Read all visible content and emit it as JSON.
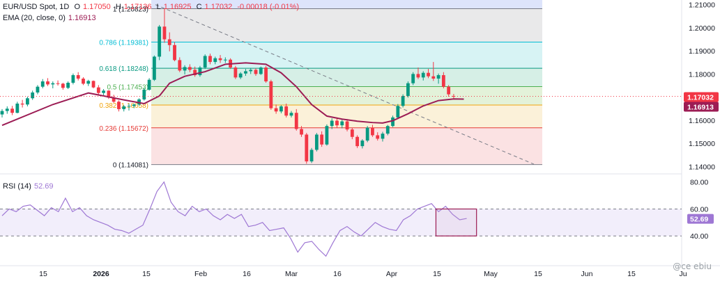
{
  "header": {
    "symbol": "EUR/USD Spot, 1D",
    "open_label": "O",
    "open": "1.17050",
    "high_label": "H",
    "high": "1.17136",
    "low_label": "L",
    "low": "1.16925",
    "close_label": "C",
    "close": "1.17032",
    "change": "-0.00018 (-0.01%)",
    "ema_label": "EMA (20, close, 0)",
    "ema_value": "1.16913"
  },
  "rsi_header": {
    "label": "RSI (14)",
    "value": "52.69"
  },
  "watermark": "@ce ebiu",
  "colors": {
    "bull": "#089981",
    "bear": "#f23645",
    "ema": "#9c1c54",
    "rsi": "#9e77d4",
    "close_badge": "#f23645",
    "ema_badge": "#9c1c54",
    "rsi_badge": "#9e77d4"
  },
  "chart_data": [
    {
      "type": "candlestick",
      "title": "EUR/USD Spot, 1D",
      "ylim": [
        1.138,
        1.212
      ],
      "y_ticks": [
        "1.21000",
        "1.20000",
        "1.19000",
        "1.18000",
        "1.17000",
        "1.16000",
        "1.15000",
        "1.14000"
      ],
      "x_ticks": [
        "15",
        "2026",
        "15",
        "Feb",
        "16",
        "Mar",
        "16",
        "Apr",
        "15",
        "May",
        "15",
        "Jun",
        "15",
        "Ju"
      ],
      "price_badges": [
        {
          "label": "1.17032",
          "value": 1.17032,
          "color": "#f23645"
        },
        {
          "label": "1.16913",
          "value": 1.16913,
          "color": "#9c1c54"
        }
      ],
      "fibonacci": [
        {
          "label": "1 (1.20823)",
          "value": 1.20823,
          "line": "#787b86",
          "fill": "#e9e9ea"
        },
        {
          "label": "0.786 (1.19381)",
          "value": 1.19381,
          "line": "#00bcd4",
          "fill": "#d7f3f4"
        },
        {
          "label": "0.618 (1.18248)",
          "value": 1.18248,
          "line": "#089981",
          "fill": "#d6efe6"
        },
        {
          "label": "0.5 (1.17453)",
          "value": 1.17453,
          "line": "#4caf50",
          "fill": "#e3f2d9"
        },
        {
          "label": "0.382 (1.16658)",
          "value": 1.16658,
          "line": "#f0a30a",
          "fill": "#fbf1d9"
        },
        {
          "label": "0.236 (1.15672)",
          "value": 1.15672,
          "line": "#e53935",
          "fill": "#fbe2e3"
        },
        {
          "label": "0 (1.14081)",
          "value": 1.14081,
          "line": "#787b86",
          "fill": ""
        }
      ],
      "trendline": {
        "from": [
          0,
          1.21
        ],
        "to": [
          96,
          1.141
        ],
        "style": "dashed"
      },
      "candles": [
        [
          1.1625,
          1.1648,
          1.1612,
          1.164
        ],
        [
          1.164,
          1.166,
          1.1628,
          1.165
        ],
        [
          1.165,
          1.1662,
          1.1622,
          1.1632
        ],
        [
          1.1632,
          1.168,
          1.163,
          1.1672
        ],
        [
          1.1672,
          1.1688,
          1.1655,
          1.1668
        ],
        [
          1.1668,
          1.1702,
          1.166,
          1.1695
        ],
        [
          1.1695,
          1.1728,
          1.1688,
          1.172
        ],
        [
          1.172,
          1.1752,
          1.1712,
          1.1745
        ],
        [
          1.1745,
          1.1778,
          1.1738,
          1.1768
        ],
        [
          1.1768,
          1.1782,
          1.1748,
          1.1755
        ],
        [
          1.1755,
          1.1768,
          1.1738,
          1.176
        ],
        [
          1.176,
          1.1772,
          1.175,
          1.1758
        ],
        [
          1.1758,
          1.1762,
          1.1732,
          1.174
        ],
        [
          1.174,
          1.1768,
          1.1735,
          1.1762
        ],
        [
          1.1762,
          1.1802,
          1.1755,
          1.1795
        ],
        [
          1.1795,
          1.1808,
          1.1772,
          1.178
        ],
        [
          1.178,
          1.1786,
          1.1752,
          1.1758
        ],
        [
          1.1758,
          1.1775,
          1.1748,
          1.177
        ],
        [
          1.177,
          1.1772,
          1.1738,
          1.1742
        ],
        [
          1.1742,
          1.1752,
          1.171,
          1.1718
        ],
        [
          1.1718,
          1.1735,
          1.1702,
          1.1728
        ],
        [
          1.1728,
          1.173,
          1.1692,
          1.1698
        ],
        [
          1.1698,
          1.171,
          1.1675,
          1.168
        ],
        [
          1.168,
          1.1686,
          1.1638,
          1.1648
        ],
        [
          1.1648,
          1.1666,
          1.1638,
          1.166
        ],
        [
          1.166,
          1.1672,
          1.1642,
          1.1662
        ],
        [
          1.1662,
          1.1672,
          1.1652,
          1.1668
        ],
        [
          1.1668,
          1.1695,
          1.1662,
          1.169
        ],
        [
          1.169,
          1.174,
          1.1685,
          1.1732
        ],
        [
          1.1732,
          1.1782,
          1.1728,
          1.1775
        ],
        [
          1.1775,
          1.188,
          1.177,
          1.1875
        ],
        [
          1.1875,
          1.2012,
          1.186,
          1.2005
        ],
        [
          1.2005,
          1.2082,
          1.1935,
          1.195
        ],
        [
          1.195,
          1.198,
          1.1898,
          1.1925
        ],
        [
          1.1925,
          1.1938,
          1.1855,
          1.186
        ],
        [
          1.186,
          1.1872,
          1.1808,
          1.1815
        ],
        [
          1.1815,
          1.1838,
          1.1798,
          1.183
        ],
        [
          1.183,
          1.1842,
          1.1808,
          1.1818
        ],
        [
          1.1818,
          1.1832,
          1.1788,
          1.1795
        ],
        [
          1.1795,
          1.1835,
          1.1788,
          1.1828
        ],
        [
          1.1828,
          1.1885,
          1.1822,
          1.1878
        ],
        [
          1.1878,
          1.1888,
          1.1842,
          1.1852
        ],
        [
          1.1852,
          1.1875,
          1.1842,
          1.1868
        ],
        [
          1.1868,
          1.1882,
          1.1848,
          1.186
        ],
        [
          1.186,
          1.1872,
          1.1848,
          1.1862
        ],
        [
          1.1862,
          1.1868,
          1.1822,
          1.1828
        ],
        [
          1.1828,
          1.1835,
          1.1778,
          1.1785
        ],
        [
          1.1785,
          1.1808,
          1.1778,
          1.1802
        ],
        [
          1.1802,
          1.1822,
          1.1792,
          1.1812
        ],
        [
          1.1812,
          1.1826,
          1.18,
          1.1818
        ],
        [
          1.1818,
          1.1825,
          1.1792,
          1.18
        ],
        [
          1.18,
          1.1832,
          1.1796,
          1.1828
        ],
        [
          1.1828,
          1.1835,
          1.1762,
          1.1768
        ],
        [
          1.1768,
          1.1775,
          1.1645,
          1.1652
        ],
        [
          1.1652,
          1.1668,
          1.1628,
          1.1638
        ],
        [
          1.1638,
          1.1665,
          1.163,
          1.166
        ],
        [
          1.166,
          1.1672,
          1.1612,
          1.162
        ],
        [
          1.162,
          1.164,
          1.1612,
          1.1632
        ],
        [
          1.1632,
          1.1648,
          1.1555,
          1.1562
        ],
        [
          1.1562,
          1.1575,
          1.1528,
          1.1538
        ],
        [
          1.1538,
          1.1545,
          1.1412,
          1.1422
        ],
        [
          1.1422,
          1.148,
          1.1415,
          1.1472
        ],
        [
          1.1472,
          1.1545,
          1.1465,
          1.1538
        ],
        [
          1.1538,
          1.1552,
          1.1485,
          1.1495
        ],
        [
          1.1495,
          1.1582,
          1.149,
          1.1575
        ],
        [
          1.1575,
          1.1608,
          1.1562,
          1.1598
        ],
        [
          1.1598,
          1.1612,
          1.1568,
          1.1578
        ],
        [
          1.1578,
          1.1602,
          1.1565,
          1.1595
        ],
        [
          1.1595,
          1.1605,
          1.1552,
          1.156
        ],
        [
          1.156,
          1.1568,
          1.1518,
          1.1528
        ],
        [
          1.1528,
          1.1535,
          1.148,
          1.1488
        ],
        [
          1.1488,
          1.1518,
          1.1478,
          1.1512
        ],
        [
          1.1512,
          1.1575,
          1.1505,
          1.1568
        ],
        [
          1.1568,
          1.158,
          1.1528,
          1.1535
        ],
        [
          1.1535,
          1.1548,
          1.1512,
          1.152
        ],
        [
          1.152,
          1.155,
          1.1508,
          1.1542
        ],
        [
          1.1542,
          1.158,
          1.1535,
          1.1575
        ],
        [
          1.1575,
          1.162,
          1.157,
          1.1612
        ],
        [
          1.1612,
          1.167,
          1.1605,
          1.1662
        ],
        [
          1.1662,
          1.1712,
          1.1655,
          1.1705
        ],
        [
          1.1705,
          1.1768,
          1.1698,
          1.176
        ],
        [
          1.176,
          1.1808,
          1.1752,
          1.18
        ],
        [
          1.18,
          1.1828,
          1.1778,
          1.1785
        ],
        [
          1.1785,
          1.1812,
          1.1772,
          1.1805
        ],
        [
          1.1805,
          1.1822,
          1.1782,
          1.179
        ],
        [
          1.179,
          1.1852,
          1.177,
          1.178
        ],
        [
          1.178,
          1.1802,
          1.1758,
          1.1795
        ],
        [
          1.1795,
          1.1808,
          1.1738,
          1.1745
        ],
        [
          1.1745,
          1.1752,
          1.1702,
          1.1712
        ],
        [
          1.1705,
          1.17136,
          1.16925,
          1.17032
        ]
      ],
      "ema": [
        [
          0,
          1.1578
        ],
        [
          10,
          1.1668
        ],
        [
          17,
          1.1718
        ],
        [
          24,
          1.1688
        ],
        [
          28,
          1.1672
        ],
        [
          31,
          1.1705
        ],
        [
          33,
          1.176
        ],
        [
          36,
          1.179
        ],
        [
          40,
          1.181
        ],
        [
          44,
          1.1842
        ],
        [
          48,
          1.1848
        ],
        [
          52,
          1.1842
        ],
        [
          55,
          1.1805
        ],
        [
          58,
          1.1745
        ],
        [
          61,
          1.1668
        ],
        [
          64,
          1.1618
        ],
        [
          67,
          1.1605
        ],
        [
          70,
          1.1596
        ],
        [
          73,
          1.159
        ],
        [
          75,
          1.1588
        ],
        [
          77,
          1.1598
        ],
        [
          80,
          1.1628
        ],
        [
          83,
          1.1662
        ],
        [
          86,
          1.1685
        ],
        [
          89,
          1.1692
        ],
        [
          91,
          1.16913
        ]
      ]
    },
    {
      "type": "line",
      "title": "RSI (14)",
      "ylim": [
        20,
        85
      ],
      "y_ticks": [
        "80.00",
        "60.00",
        "40.00"
      ],
      "band": [
        40,
        60
      ],
      "value_badge": {
        "label": "52.69",
        "value": 52.69
      },
      "highlight_box": [
        85.5,
        93.5,
        40,
        60
      ],
      "values": [
        [
          0,
          55
        ],
        [
          2,
          60
        ],
        [
          4,
          58
        ],
        [
          6,
          62
        ],
        [
          8,
          63
        ],
        [
          10,
          59
        ],
        [
          12,
          55
        ],
        [
          14,
          61
        ],
        [
          16,
          58
        ],
        [
          18,
          68
        ],
        [
          20,
          58
        ],
        [
          22,
          61
        ],
        [
          24,
          55
        ],
        [
          26,
          52
        ],
        [
          28,
          50
        ],
        [
          30,
          48
        ],
        [
          32,
          45
        ],
        [
          34,
          44
        ],
        [
          36,
          42
        ],
        [
          38,
          45
        ],
        [
          40,
          48
        ],
        [
          42,
          60
        ],
        [
          44,
          73
        ],
        [
          46,
          80
        ],
        [
          48,
          65
        ],
        [
          50,
          58
        ],
        [
          52,
          55
        ],
        [
          54,
          62
        ],
        [
          56,
          58
        ],
        [
          58,
          60
        ],
        [
          60,
          55
        ],
        [
          62,
          52
        ],
        [
          64,
          56
        ],
        [
          66,
          53
        ],
        [
          68,
          56
        ],
        [
          70,
          47
        ],
        [
          72,
          48
        ],
        [
          74,
          50
        ],
        [
          76,
          44
        ],
        [
          78,
          45
        ],
        [
          80,
          46
        ],
        [
          82,
          38
        ],
        [
          84,
          28
        ],
        [
          86,
          35
        ],
        [
          88,
          36
        ],
        [
          90,
          30
        ],
        [
          92,
          25
        ],
        [
          94,
          35
        ],
        [
          96,
          44
        ],
        [
          98,
          47
        ],
        [
          100,
          43
        ],
        [
          102,
          40
        ],
        [
          104,
          45
        ],
        [
          106,
          50
        ],
        [
          108,
          47
        ],
        [
          110,
          45
        ],
        [
          112,
          44
        ],
        [
          114,
          52
        ],
        [
          116,
          55
        ],
        [
          118,
          60
        ],
        [
          120,
          62
        ],
        [
          122,
          64
        ],
        [
          124,
          58
        ],
        [
          126,
          62
        ],
        [
          128,
          56
        ],
        [
          130,
          52
        ],
        [
          132,
          53
        ]
      ]
    }
  ]
}
